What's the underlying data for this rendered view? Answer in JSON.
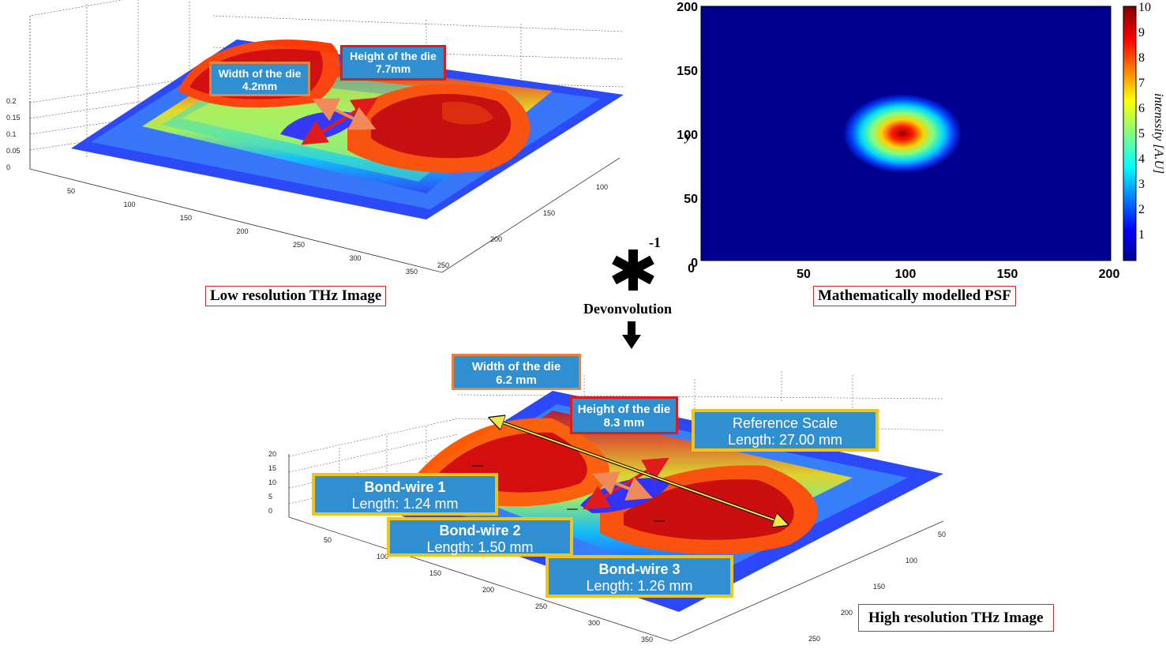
{
  "top_left": {
    "caption": "Low resolution THz Image",
    "width_label": [
      "Width of the die",
      "4.2mm"
    ],
    "height_label": [
      "Height of the die",
      "7.7mm"
    ],
    "z_ticks": [
      "0.2",
      "0.15",
      "0.1",
      "0.05",
      "0"
    ],
    "x_ticks": [
      "50",
      "100",
      "150",
      "200",
      "250",
      "300",
      "350"
    ],
    "y_ticks": [
      "100",
      "150",
      "200",
      "250"
    ]
  },
  "psf": {
    "caption": "Mathematically modelled PSF",
    "y_axis_label": "y",
    "colorbar_label": "intenssity [A.U]",
    "x_ticks": [
      "50",
      "100",
      "150",
      "200"
    ],
    "y_ticks": [
      "200",
      "150",
      "100",
      "50",
      "0"
    ],
    "origin_tick": "0",
    "colorbar_ticks": [
      "10",
      "9",
      "8",
      "7",
      "6",
      "5",
      "4",
      "3",
      "2",
      "1"
    ]
  },
  "operator": {
    "symbol": "*",
    "exponent": "-1",
    "label": "Devonvolution"
  },
  "bottom": {
    "caption": "High resolution THz Image",
    "width_label": [
      "Width of the die",
      "6.2 mm"
    ],
    "height_label": [
      "Height of the die",
      "8.3 mm"
    ],
    "reference_label": [
      "Reference Scale",
      "Length: 27.00 mm"
    ],
    "bond_wire_1": [
      "Bond-wire 1",
      "Length: 1.24 mm"
    ],
    "bond_wire_2": [
      "Bond-wire 2",
      "Length: 1.50 mm"
    ],
    "bond_wire_3": [
      "Bond-wire 3",
      "Length: 1.26 mm"
    ],
    "z_ticks": [
      "20",
      "15",
      "10",
      "5",
      "0"
    ],
    "x_ticks": [
      "50",
      "100",
      "150",
      "200",
      "250",
      "300",
      "350"
    ],
    "y_ticks": [
      "50",
      "100",
      "150",
      "200",
      "250"
    ]
  }
}
